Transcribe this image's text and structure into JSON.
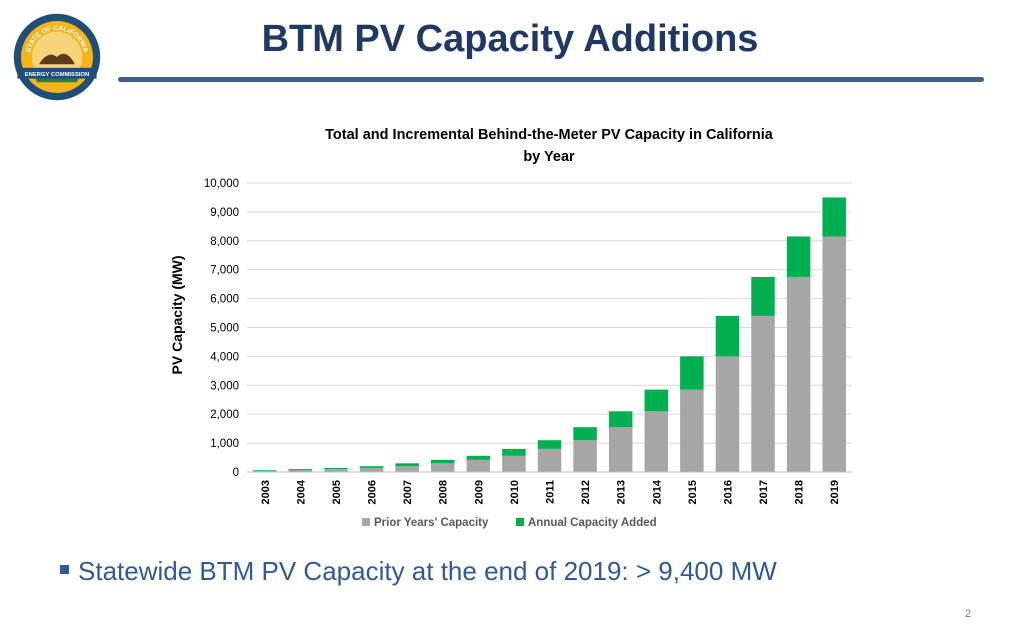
{
  "slide": {
    "title": "BTM PV Capacity Additions",
    "bullet": "Statewide BTM PV Capacity at the end of 2019: > 9,400 MW",
    "page_number": "2"
  },
  "logo": {
    "top_text": "STATE OF CALIFORNIA",
    "bottom_text": "ENERGY COMMISSION"
  },
  "colors": {
    "prior": "#a6a6a6",
    "added": "#00b050",
    "title": "#1f3864",
    "bullet": "#2e5a9c"
  },
  "chart_data": {
    "type": "bar",
    "stacked": true,
    "title": "Total and Incremental Behind-the-Meter PV Capacity in California",
    "title_line2": "by Year",
    "xlabel": "",
    "ylabel": "PV Capacity (MW)",
    "ylim": [
      0,
      10000
    ],
    "yticks": [
      0,
      1000,
      2000,
      3000,
      4000,
      5000,
      6000,
      7000,
      8000,
      9000,
      10000
    ],
    "ytick_labels": [
      "0",
      "1,000",
      "2,000",
      "3,000",
      "4,000",
      "5,000",
      "6,000",
      "7,000",
      "8,000",
      "9,000",
      "10,000"
    ],
    "grid": true,
    "legend": "bottom",
    "categories": [
      "2003",
      "2004",
      "2005",
      "2006",
      "2007",
      "2008",
      "2009",
      "2010",
      "2011",
      "2012",
      "2013",
      "2014",
      "2015",
      "2016",
      "2017",
      "2018",
      "2019"
    ],
    "series": [
      {
        "name": "Prior Years' Capacity",
        "values": [
          30,
          60,
          100,
          140,
          200,
          300,
          420,
          560,
          800,
          1100,
          1550,
          2100,
          2850,
          4000,
          5400,
          6750,
          8150
        ]
      },
      {
        "name": "Annual Capacity Added",
        "values": [
          30,
          40,
          40,
          60,
          100,
          120,
          140,
          240,
          300,
          450,
          550,
          750,
          1150,
          1400,
          1350,
          1400,
          1350
        ]
      }
    ]
  }
}
